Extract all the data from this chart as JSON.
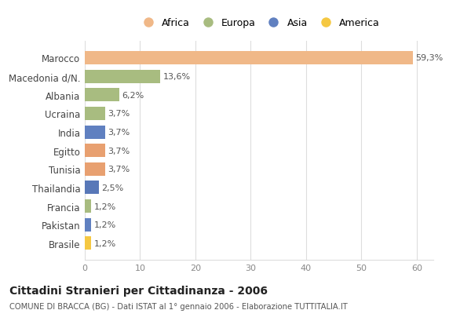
{
  "categories": [
    "Brasile",
    "Pakistan",
    "Francia",
    "Thailandia",
    "Tunisia",
    "Egitto",
    "India",
    "Ucraina",
    "Albania",
    "Macedonia d/N.",
    "Marocco"
  ],
  "values": [
    1.2,
    1.2,
    1.2,
    2.5,
    3.7,
    3.7,
    3.7,
    3.7,
    6.2,
    13.6,
    59.3
  ],
  "colors": [
    "#F5C842",
    "#6080C0",
    "#A8BC80",
    "#5878B8",
    "#E8A070",
    "#E8A070",
    "#6080C0",
    "#A8BC80",
    "#A8BC80",
    "#A8BC80",
    "#F0B888"
  ],
  "bar_labels": [
    "1,2%",
    "1,2%",
    "1,2%",
    "2,5%",
    "3,7%",
    "3,7%",
    "3,7%",
    "3,7%",
    "6,2%",
    "13,6%",
    "59,3%"
  ],
  "legend_labels": [
    "Africa",
    "Europa",
    "Asia",
    "America"
  ],
  "legend_colors": [
    "#F0B888",
    "#A8BC80",
    "#6080C0",
    "#F5C842"
  ],
  "title": "Cittadini Stranieri per Cittadinanza - 2006",
  "subtitle": "COMUNE DI BRACCA (BG) - Dati ISTAT al 1° gennaio 2006 - Elaborazione TUTTITALIA.IT",
  "xlim": [
    0,
    63
  ],
  "xticks": [
    0,
    10,
    20,
    30,
    40,
    50,
    60
  ],
  "bg_color": "#ffffff",
  "grid_color": "#dddddd"
}
